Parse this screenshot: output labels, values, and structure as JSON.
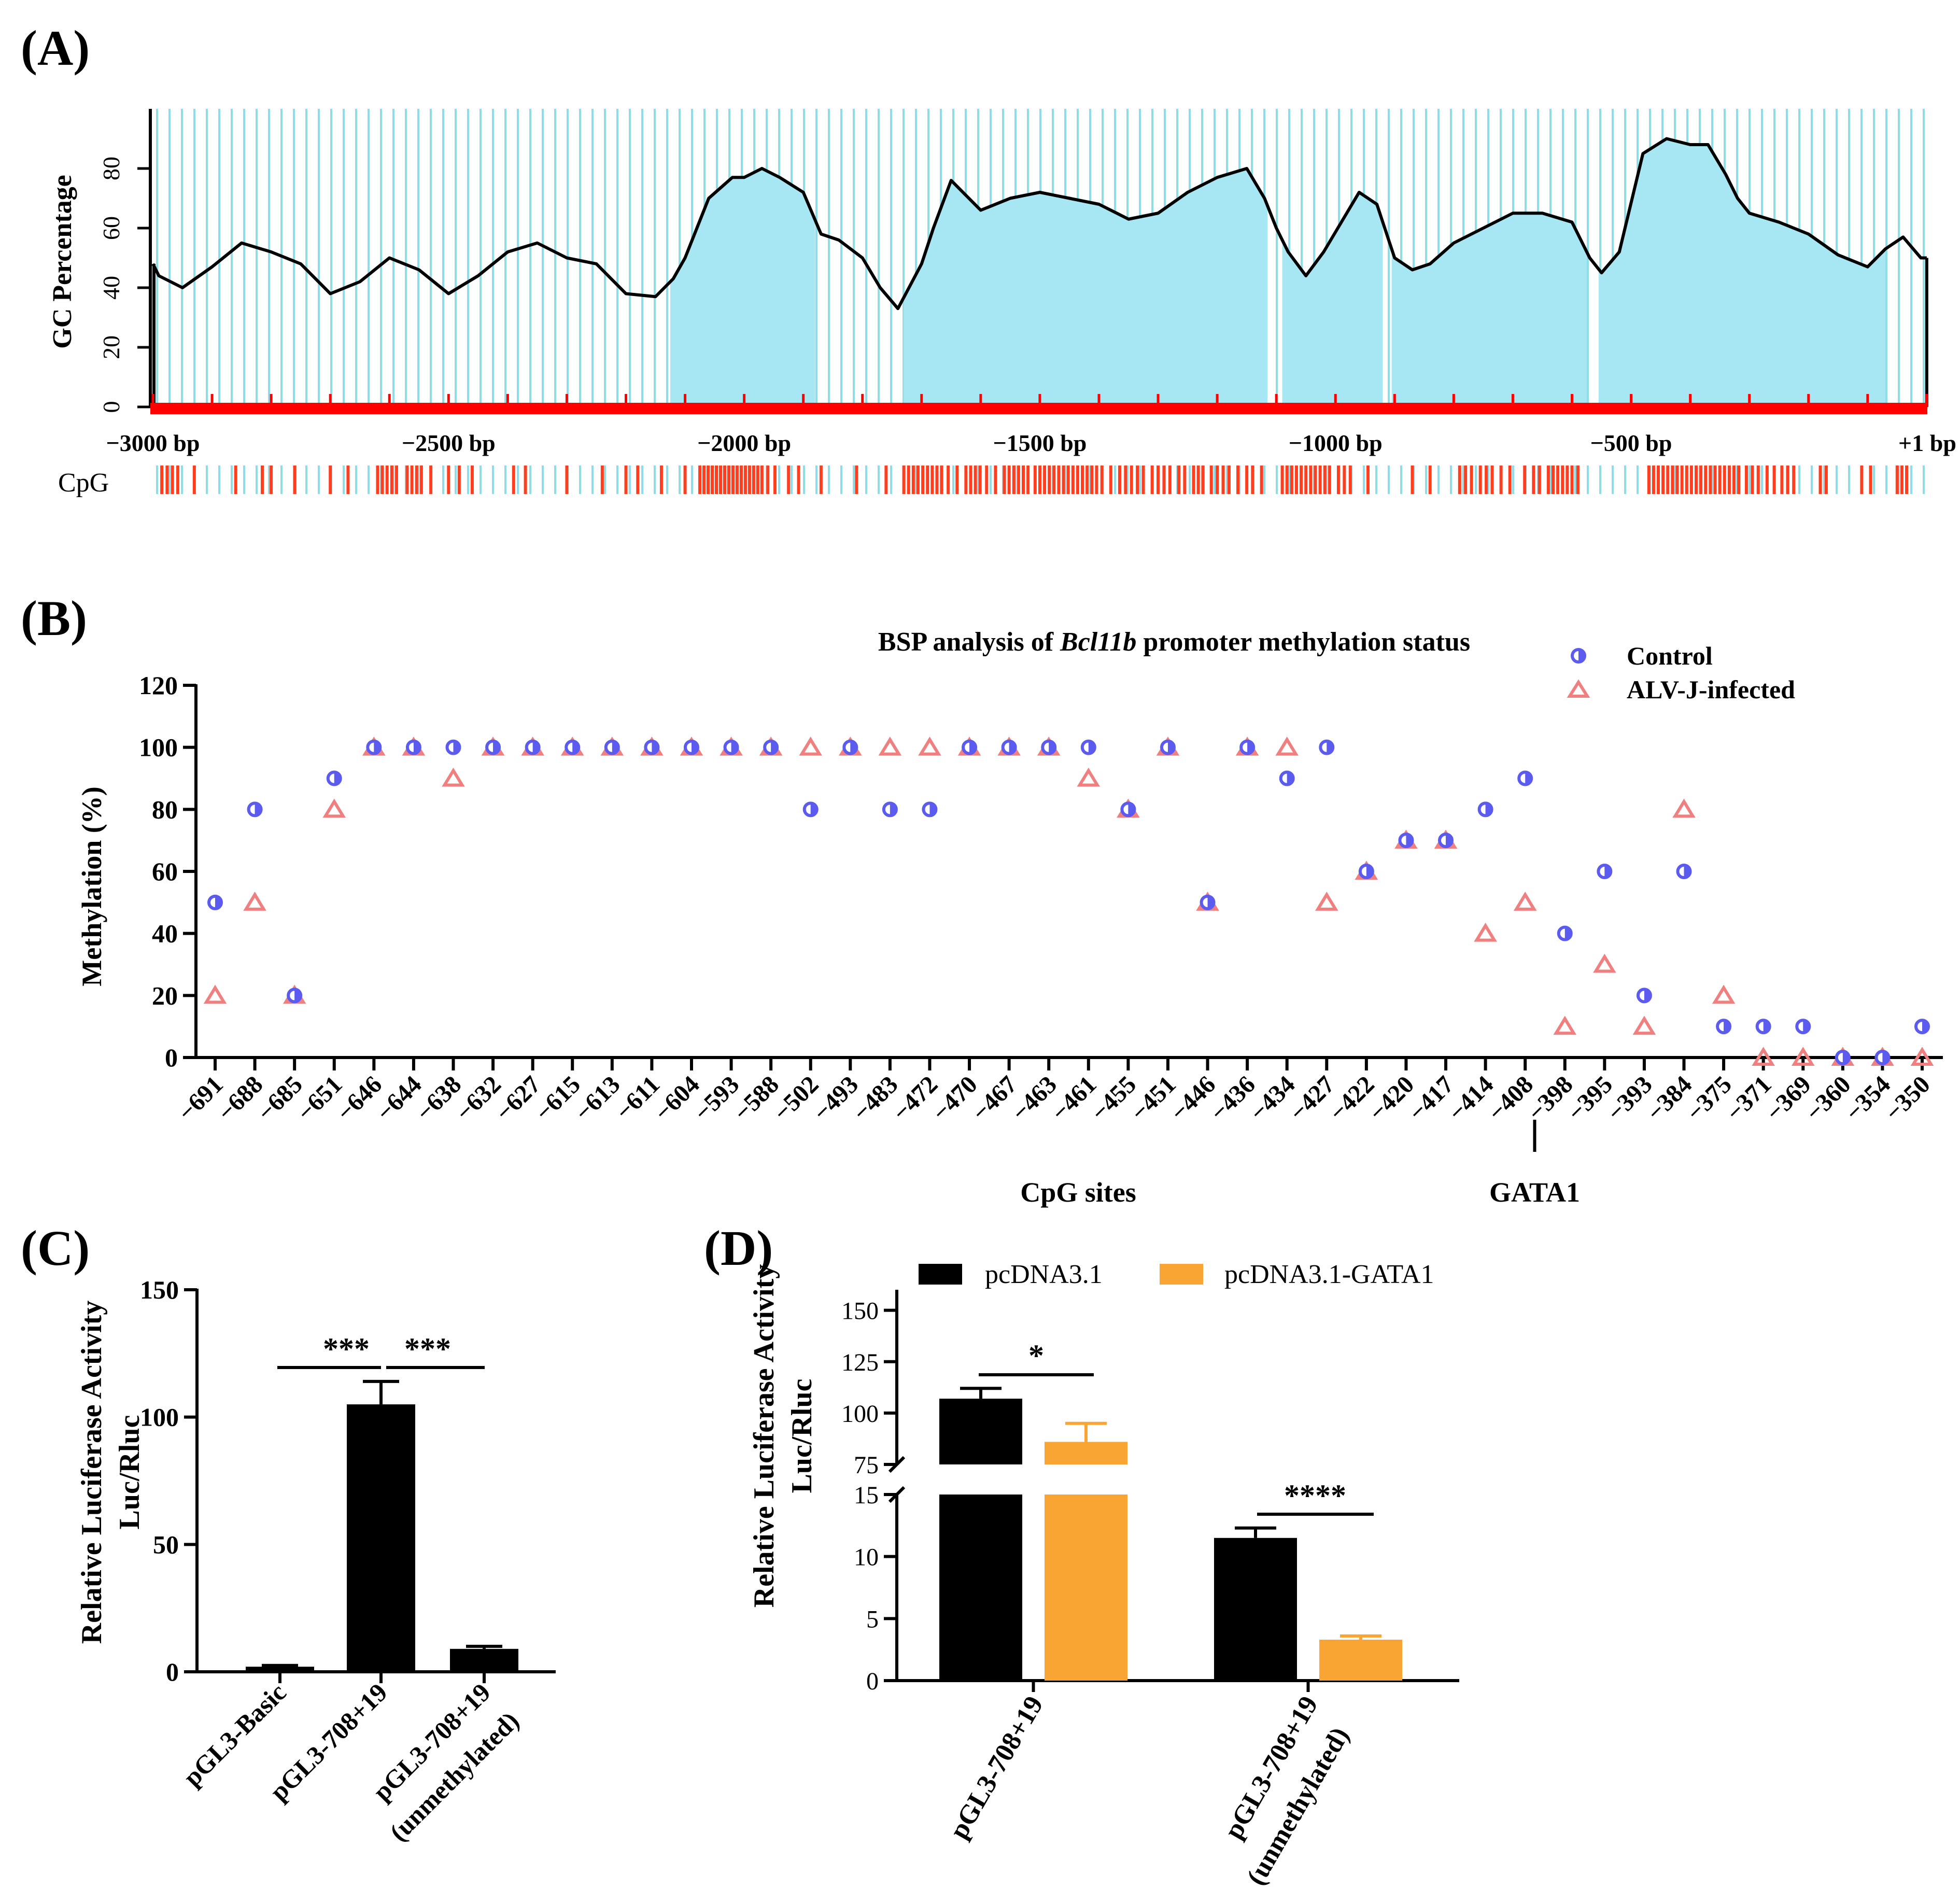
{
  "colors": {
    "gc_fill": "#a7e6f3",
    "gc_grid": "#8fdde9",
    "cpg_mark": "#ff3d1f",
    "baseline": "#ff0000",
    "control": "#5b5bf0",
    "alvj": "#f08080",
    "black": "#000000",
    "orange": "#f9a533"
  },
  "chart_data": [
    {
      "id": "A",
      "panel_label": "(A)",
      "type": "area",
      "title": "",
      "ylabel": "GC Percentage",
      "xlabel": "",
      "xlim": [
        -3000,
        1
      ],
      "ylim": [
        0,
        100
      ],
      "yticks": [
        "0",
        "20",
        "40",
        "60",
        "80"
      ],
      "xticks": [
        {
          "pos": -3000,
          "label": "−3000 bp"
        },
        {
          "pos": -2500,
          "label": "−2500 bp"
        },
        {
          "pos": -2000,
          "label": "−2000 bp"
        },
        {
          "pos": -1500,
          "label": "−1500 bp"
        },
        {
          "pos": -1000,
          "label": "−1000 bp"
        },
        {
          "pos": -500,
          "label": "−500 bp"
        },
        {
          "pos": 1,
          "label": "+1 bp"
        }
      ],
      "cpg_label": "CpG",
      "gc_profile": {
        "x": [
          -3000,
          -2990,
          -2950,
          -2900,
          -2850,
          -2800,
          -2750,
          -2700,
          -2650,
          -2600,
          -2550,
          -2500,
          -2450,
          -2400,
          -2350,
          -2300,
          -2250,
          -2200,
          -2150,
          -2120,
          -2100,
          -2060,
          -2020,
          -2000,
          -1970,
          -1940,
          -1900,
          -1870,
          -1840,
          -1800,
          -1770,
          -1740,
          -1700,
          -1680,
          -1650,
          -1600,
          -1550,
          -1500,
          -1450,
          -1400,
          -1350,
          -1300,
          -1250,
          -1200,
          -1150,
          -1120,
          -1100,
          -1080,
          -1050,
          -1020,
          -990,
          -960,
          -930,
          -900,
          -870,
          -840,
          -800,
          -750,
          -700,
          -650,
          -600,
          -570,
          -550,
          -520,
          -480,
          -440,
          -400,
          -370,
          -340,
          -320,
          -300,
          -250,
          -200,
          -150,
          -100,
          -70,
          -40,
          -10,
          0
        ],
        "y": [
          48,
          44,
          40,
          47,
          55,
          52,
          48,
          38,
          42,
          50,
          46,
          38,
          44,
          52,
          55,
          50,
          48,
          38,
          37,
          43,
          50,
          70,
          77,
          77,
          80,
          77,
          72,
          58,
          56,
          50,
          40,
          33,
          48,
          60,
          76,
          66,
          70,
          72,
          70,
          68,
          63,
          65,
          72,
          77,
          80,
          70,
          60,
          52,
          44,
          52,
          62,
          72,
          68,
          50,
          46,
          48,
          55,
          60,
          65,
          65,
          62,
          50,
          45,
          52,
          85,
          90,
          88,
          88,
          78,
          70,
          65,
          62,
          58,
          51,
          47,
          53,
          57,
          50,
          50
        ]
      },
      "cgi_regions": [
        [
          -2125,
          -1880
        ],
        [
          -1730,
          -1115
        ],
        [
          -1090,
          -920
        ],
        [
          -905,
          -575
        ],
        [
          -555,
          -70
        ]
      ],
      "cpg_sites": [
        -2985,
        -2976,
        -2967,
        -2958,
        -2930,
        -2860,
        -2815,
        -2800,
        -2760,
        -2700,
        -2670,
        -2620,
        -2612,
        -2604,
        -2596,
        -2588,
        -2570,
        -2562,
        -2554,
        -2546,
        -2530,
        -2500,
        -2482,
        -2460,
        -2390,
        -2370,
        -2300,
        -2240,
        -2200,
        -2180,
        -2140,
        -2100,
        -2075,
        -2068,
        -2061,
        -2054,
        -2047,
        -2040,
        -2033,
        -2026,
        -2019,
        -2012,
        -2005,
        -1998,
        -1991,
        -1984,
        -1977,
        -1970,
        -1960,
        -1948,
        -1925,
        -1908,
        -1870,
        -1810,
        -1760,
        -1730,
        -1722,
        -1714,
        -1706,
        -1698,
        -1690,
        -1682,
        -1674,
        -1666,
        -1655,
        -1640,
        -1625,
        -1617,
        -1609,
        -1601,
        -1590,
        -1575,
        -1560,
        -1552,
        -1544,
        -1536,
        -1528,
        -1520,
        -1508,
        -1500,
        -1492,
        -1484,
        -1476,
        -1468,
        -1460,
        -1452,
        -1444,
        -1436,
        -1428,
        -1420,
        -1412,
        -1404,
        -1395,
        -1380,
        -1365,
        -1355,
        -1345,
        -1335,
        -1325,
        -1310,
        -1300,
        -1290,
        -1280,
        -1265,
        -1255,
        -1240,
        -1232,
        -1224,
        -1210,
        -1200,
        -1190,
        -1180,
        -1165,
        -1150,
        -1140,
        -1125,
        -1090,
        -1082,
        -1074,
        -1066,
        -1058,
        -1050,
        -1042,
        -1034,
        -1026,
        -1018,
        -1010,
        -995,
        -985,
        -975,
        -945,
        -870,
        -840,
        -790,
        -780,
        -770,
        -755,
        -745,
        -735,
        -720,
        -705,
        -680,
        -665,
        -655,
        -640,
        -632,
        -624,
        -616,
        -608,
        -600,
        -590,
        -470,
        -462,
        -454,
        -446,
        -438,
        -430,
        -422,
        -414,
        -406,
        -398,
        -390,
        -382,
        -374,
        -366,
        -358,
        -350,
        -342,
        -334,
        -326,
        -318,
        -305,
        -295,
        -285,
        -270,
        -258,
        -245,
        -235,
        -225,
        -180,
        -170,
        -110,
        -95,
        -50,
        -42,
        -34
      ]
    },
    {
      "id": "B",
      "panel_label": "(B)",
      "type": "scatter",
      "title_prefix": "BSP analysis of ",
      "title_gene": "Bcl11b",
      "title_suffix": " promoter methylation status",
      "ylabel": "Methylation (%)",
      "xlabel": "CpG sites",
      "ylim": [
        0,
        120
      ],
      "yticks": [
        "0",
        "20",
        "40",
        "60",
        "80",
        "100",
        "120"
      ],
      "annotation": "GATA1",
      "annotation_after_site": "−408",
      "categories": [
        "−691",
        "−688",
        "−685",
        "−651",
        "−646",
        "−644",
        "−638",
        "−632",
        "−627",
        "−615",
        "−613",
        "−611",
        "−604",
        "−593",
        "−588",
        "−502",
        "−493",
        "−483",
        "−472",
        "−470",
        "−467",
        "−463",
        "−461",
        "−455",
        "−451",
        "−446",
        "−436",
        "−434",
        "−427",
        "−422",
        "−420",
        "−417",
        "−414",
        "−408",
        "−398",
        "−395",
        "−393",
        "−384",
        "−375",
        "−371",
        "−369",
        "−360",
        "−354",
        "−350"
      ],
      "series": [
        {
          "name": "Control",
          "marker": "half-circle",
          "values": [
            50,
            80,
            20,
            90,
            100,
            100,
            100,
            100,
            100,
            100,
            100,
            100,
            100,
            100,
            100,
            80,
            100,
            80,
            80,
            100,
            100,
            100,
            100,
            80,
            100,
            50,
            100,
            90,
            100,
            60,
            70,
            70,
            80,
            90,
            40,
            60,
            20,
            60,
            10,
            10,
            10,
            0,
            0,
            10
          ]
        },
        {
          "name": "ALV-J-infected",
          "marker": "triangle",
          "values": [
            20,
            50,
            20,
            80,
            100,
            100,
            90,
            100,
            100,
            100,
            100,
            100,
            100,
            100,
            100,
            100,
            100,
            100,
            100,
            100,
            100,
            100,
            90,
            80,
            100,
            50,
            100,
            100,
            50,
            60,
            70,
            70,
            40,
            50,
            10,
            30,
            10,
            80,
            20,
            0,
            0,
            0,
            0,
            0
          ]
        }
      ]
    },
    {
      "id": "C",
      "panel_label": "(C)",
      "type": "bar",
      "ylabel_line1": "Relative Luciferase Activity",
      "ylabel_line2": "Luc/Rluc",
      "ylim": [
        0,
        150
      ],
      "yticks": [
        "0",
        "50",
        "100",
        "150"
      ],
      "categories": [
        [
          "pGL3-Basic"
        ],
        [
          "pGL3-708+19"
        ],
        [
          "pGL3-708+19",
          "(unmethylated)"
        ]
      ],
      "values": [
        2,
        105,
        9
      ],
      "errors": [
        0.5,
        9,
        1
      ],
      "significance": [
        "***",
        "***"
      ]
    },
    {
      "id": "D",
      "panel_label": "(D)",
      "type": "bar",
      "ylabel_line1": "Relative Luciferase Activity",
      "ylabel_line2": "Luc/Rluc",
      "broken_axis": true,
      "ylim_lower": [
        0,
        15
      ],
      "ylim_upper": [
        75,
        160
      ],
      "yticks_lower": [
        "0",
        "5",
        "10",
        "15"
      ],
      "yticks_upper": [
        "75",
        "100",
        "125",
        "150"
      ],
      "categories": [
        [
          "pGL3-708+19"
        ],
        [
          "pGL3-708+19",
          "(unmethylated)"
        ]
      ],
      "series": [
        {
          "name": "pcDNA3.1",
          "values": [
            107,
            11.5
          ],
          "errors": [
            5,
            0.8
          ]
        },
        {
          "name": "pcDNA3.1-GATA1",
          "values": [
            86,
            3.3
          ],
          "errors": [
            9,
            0.3
          ]
        }
      ],
      "significance": [
        "*",
        "****"
      ]
    }
  ]
}
